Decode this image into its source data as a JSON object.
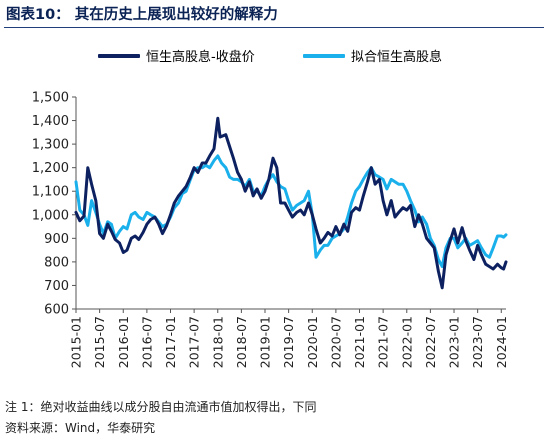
{
  "figure": {
    "title": "图表10：  其在历史上展现出较好的解释力",
    "notes": [
      "注 1：绝对收益曲线以成分股自由流通市值加权得出，下同",
      "资料来源：Wind，华泰研究"
    ]
  },
  "colors": {
    "series_1": "#0d2161",
    "series_2": "#1ab0ec",
    "title": "#0a2254",
    "axis": "#555555"
  },
  "chart_data": {
    "type": "line",
    "yticks": [
      600,
      700,
      800,
      900,
      1000,
      1100,
      1200,
      1300,
      1400,
      1500
    ],
    "ytick_labels": [
      "600",
      "700",
      "800",
      "900",
      "1,000",
      "1,100",
      "1,200",
      "1,300",
      "1,400",
      "1,500"
    ],
    "ylim": [
      600,
      1500
    ],
    "xlim": [
      2015.0,
      2024.1
    ],
    "xticks": [
      2015.0,
      2015.5,
      2016.0,
      2016.5,
      2017.0,
      2017.5,
      2018.0,
      2018.5,
      2019.0,
      2019.5,
      2020.0,
      2020.5,
      2021.0,
      2021.5,
      2022.0,
      2022.5,
      2023.0,
      2023.5,
      2024.0
    ],
    "xtick_labels": [
      "2015-01",
      "2015-07",
      "2016-01",
      "2016-07",
      "2017-01",
      "2017-07",
      "2018-01",
      "2018-07",
      "2019-01",
      "2019-07",
      "2020-01",
      "2020-07",
      "2021-01",
      "2021-07",
      "2022-01",
      "2022-07",
      "2023-01",
      "2023-07",
      "2024-01"
    ],
    "legend_position": "top",
    "series": [
      {
        "name": "恒生高股息-收盘价",
        "points": [
          [
            2015.0,
            1010
          ],
          [
            2015.08,
            975
          ],
          [
            2015.17,
            995
          ],
          [
            2015.25,
            1200
          ],
          [
            2015.33,
            1130
          ],
          [
            2015.42,
            1060
          ],
          [
            2015.5,
            920
          ],
          [
            2015.58,
            900
          ],
          [
            2015.67,
            960
          ],
          [
            2015.75,
            930
          ],
          [
            2015.83,
            895
          ],
          [
            2015.92,
            880
          ],
          [
            2016.0,
            840
          ],
          [
            2016.08,
            850
          ],
          [
            2016.17,
            900
          ],
          [
            2016.25,
            910
          ],
          [
            2016.33,
            895
          ],
          [
            2016.42,
            925
          ],
          [
            2016.5,
            960
          ],
          [
            2016.58,
            980
          ],
          [
            2016.67,
            990
          ],
          [
            2016.75,
            960
          ],
          [
            2016.83,
            920
          ],
          [
            2016.92,
            955
          ],
          [
            2017.0,
            1000
          ],
          [
            2017.08,
            1050
          ],
          [
            2017.17,
            1080
          ],
          [
            2017.25,
            1100
          ],
          [
            2017.33,
            1120
          ],
          [
            2017.42,
            1160
          ],
          [
            2017.5,
            1200
          ],
          [
            2017.58,
            1180
          ],
          [
            2017.67,
            1220
          ],
          [
            2017.75,
            1220
          ],
          [
            2017.83,
            1250
          ],
          [
            2017.92,
            1280
          ],
          [
            2018.0,
            1410
          ],
          [
            2018.05,
            1330
          ],
          [
            2018.17,
            1340
          ],
          [
            2018.25,
            1290
          ],
          [
            2018.33,
            1240
          ],
          [
            2018.42,
            1180
          ],
          [
            2018.5,
            1150
          ],
          [
            2018.58,
            1100
          ],
          [
            2018.67,
            1140
          ],
          [
            2018.75,
            1080
          ],
          [
            2018.83,
            1110
          ],
          [
            2018.92,
            1070
          ],
          [
            2019.0,
            1100
          ],
          [
            2019.08,
            1150
          ],
          [
            2019.17,
            1240
          ],
          [
            2019.25,
            1200
          ],
          [
            2019.33,
            1050
          ],
          [
            2019.42,
            1050
          ],
          [
            2019.5,
            1020
          ],
          [
            2019.58,
            990
          ],
          [
            2019.67,
            1010
          ],
          [
            2019.75,
            1020
          ],
          [
            2019.83,
            1000
          ],
          [
            2019.92,
            1050
          ],
          [
            2020.0,
            1000
          ],
          [
            2020.08,
            940
          ],
          [
            2020.17,
            880
          ],
          [
            2020.25,
            900
          ],
          [
            2020.33,
            925
          ],
          [
            2020.42,
            910
          ],
          [
            2020.5,
            950
          ],
          [
            2020.58,
            915
          ],
          [
            2020.67,
            960
          ],
          [
            2020.75,
            930
          ],
          [
            2020.83,
            1010
          ],
          [
            2020.92,
            1030
          ],
          [
            2021.0,
            1020
          ],
          [
            2021.08,
            1080
          ],
          [
            2021.17,
            1140
          ],
          [
            2021.25,
            1200
          ],
          [
            2021.33,
            1130
          ],
          [
            2021.42,
            1150
          ],
          [
            2021.5,
            1060
          ],
          [
            2021.58,
            1000
          ],
          [
            2021.67,
            1060
          ],
          [
            2021.75,
            990
          ],
          [
            2021.83,
            1010
          ],
          [
            2021.92,
            1030
          ],
          [
            2022.0,
            1020
          ],
          [
            2022.08,
            1040
          ],
          [
            2022.17,
            950
          ],
          [
            2022.25,
            1000
          ],
          [
            2022.33,
            960
          ],
          [
            2022.42,
            900
          ],
          [
            2022.5,
            880
          ],
          [
            2022.58,
            860
          ],
          [
            2022.67,
            760
          ],
          [
            2022.75,
            690
          ],
          [
            2022.83,
            830
          ],
          [
            2022.92,
            890
          ],
          [
            2023.0,
            940
          ],
          [
            2023.08,
            880
          ],
          [
            2023.17,
            945
          ],
          [
            2023.25,
            890
          ],
          [
            2023.33,
            850
          ],
          [
            2023.42,
            810
          ],
          [
            2023.5,
            870
          ],
          [
            2023.58,
            830
          ],
          [
            2023.67,
            790
          ],
          [
            2023.75,
            780
          ],
          [
            2023.83,
            770
          ],
          [
            2023.92,
            790
          ],
          [
            2024.0,
            775
          ],
          [
            2024.05,
            770
          ],
          [
            2024.1,
            800
          ]
        ]
      },
      {
        "name": "拟合恒生高股息",
        "points": [
          [
            2015.0,
            1140
          ],
          [
            2015.08,
            1020
          ],
          [
            2015.17,
            1000
          ],
          [
            2015.25,
            955
          ],
          [
            2015.33,
            1060
          ],
          [
            2015.42,
            1010
          ],
          [
            2015.5,
            960
          ],
          [
            2015.58,
            920
          ],
          [
            2015.67,
            970
          ],
          [
            2015.75,
            960
          ],
          [
            2015.83,
            900
          ],
          [
            2015.92,
            930
          ],
          [
            2016.0,
            950
          ],
          [
            2016.08,
            940
          ],
          [
            2016.17,
            1000
          ],
          [
            2016.25,
            1010
          ],
          [
            2016.33,
            990
          ],
          [
            2016.42,
            980
          ],
          [
            2016.5,
            1010
          ],
          [
            2016.58,
            1000
          ],
          [
            2016.67,
            990
          ],
          [
            2016.75,
            970
          ],
          [
            2016.83,
            950
          ],
          [
            2016.92,
            960
          ],
          [
            2017.0,
            990
          ],
          [
            2017.08,
            1030
          ],
          [
            2017.17,
            1050
          ],
          [
            2017.25,
            1090
          ],
          [
            2017.33,
            1100
          ],
          [
            2017.42,
            1150
          ],
          [
            2017.5,
            1190
          ],
          [
            2017.58,
            1200
          ],
          [
            2017.67,
            1200
          ],
          [
            2017.75,
            1210
          ],
          [
            2017.83,
            1200
          ],
          [
            2017.92,
            1230
          ],
          [
            2018.0,
            1250
          ],
          [
            2018.08,
            1220
          ],
          [
            2018.17,
            1200
          ],
          [
            2018.25,
            1160
          ],
          [
            2018.33,
            1150
          ],
          [
            2018.42,
            1150
          ],
          [
            2018.5,
            1140
          ],
          [
            2018.58,
            1120
          ],
          [
            2018.67,
            1150
          ],
          [
            2018.75,
            1100
          ],
          [
            2018.83,
            1100
          ],
          [
            2018.92,
            1080
          ],
          [
            2019.0,
            1120
          ],
          [
            2019.08,
            1150
          ],
          [
            2019.17,
            1170
          ],
          [
            2019.25,
            1140
          ],
          [
            2019.33,
            1120
          ],
          [
            2019.42,
            1110
          ],
          [
            2019.5,
            1060
          ],
          [
            2019.58,
            1020
          ],
          [
            2019.67,
            1040
          ],
          [
            2019.75,
            1050
          ],
          [
            2019.83,
            1060
          ],
          [
            2019.92,
            1100
          ],
          [
            2020.0,
            1000
          ],
          [
            2020.08,
            820
          ],
          [
            2020.17,
            850
          ],
          [
            2020.25,
            870
          ],
          [
            2020.33,
            870
          ],
          [
            2020.42,
            900
          ],
          [
            2020.5,
            910
          ],
          [
            2020.58,
            920
          ],
          [
            2020.67,
            940
          ],
          [
            2020.75,
            990
          ],
          [
            2020.83,
            1050
          ],
          [
            2020.92,
            1100
          ],
          [
            2021.0,
            1120
          ],
          [
            2021.08,
            1150
          ],
          [
            2021.17,
            1180
          ],
          [
            2021.25,
            1200
          ],
          [
            2021.33,
            1170
          ],
          [
            2021.42,
            1160
          ],
          [
            2021.5,
            1150
          ],
          [
            2021.58,
            1110
          ],
          [
            2021.67,
            1150
          ],
          [
            2021.75,
            1140
          ],
          [
            2021.83,
            1130
          ],
          [
            2021.92,
            1130
          ],
          [
            2022.0,
            1100
          ],
          [
            2022.08,
            1060
          ],
          [
            2022.17,
            1020
          ],
          [
            2022.25,
            970
          ],
          [
            2022.33,
            990
          ],
          [
            2022.42,
            960
          ],
          [
            2022.5,
            900
          ],
          [
            2022.58,
            870
          ],
          [
            2022.67,
            810
          ],
          [
            2022.75,
            780
          ],
          [
            2022.83,
            860
          ],
          [
            2022.92,
            900
          ],
          [
            2023.0,
            900
          ],
          [
            2023.08,
            860
          ],
          [
            2023.17,
            880
          ],
          [
            2023.25,
            900
          ],
          [
            2023.33,
            870
          ],
          [
            2023.42,
            880
          ],
          [
            2023.5,
            890
          ],
          [
            2023.58,
            860
          ],
          [
            2023.67,
            830
          ],
          [
            2023.75,
            820
          ],
          [
            2023.83,
            860
          ],
          [
            2023.92,
            910
          ],
          [
            2024.0,
            910
          ],
          [
            2024.05,
            905
          ],
          [
            2024.1,
            915
          ]
        ]
      }
    ]
  }
}
